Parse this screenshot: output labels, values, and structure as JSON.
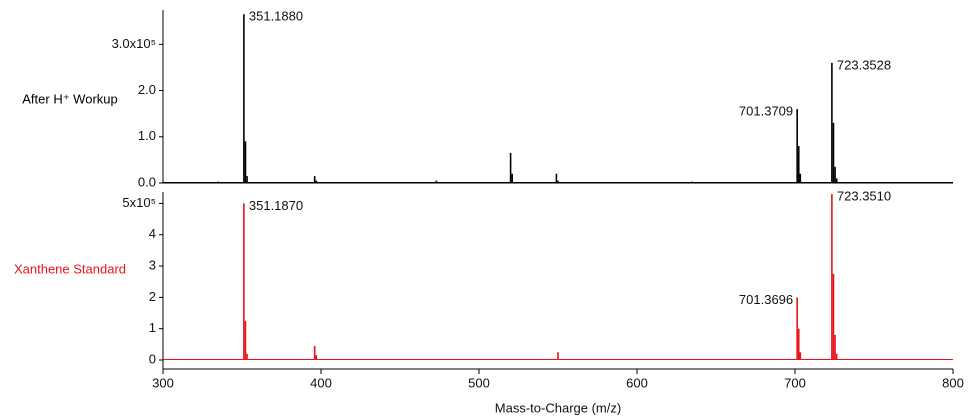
{
  "chart_data": [
    {
      "type": "stem",
      "xlim": [
        300,
        800
      ],
      "ylim": [
        0,
        3.7
      ],
      "yticks": [
        {
          "value": 0,
          "label": "0.0"
        },
        {
          "value": 1,
          "label": "1.0"
        },
        {
          "value": 2,
          "label": "2.0"
        },
        {
          "value": 3,
          "label": "3.0x10⁵"
        }
      ],
      "series": [
        {
          "name": "After H⁺ Workup",
          "color": "#000000",
          "x": [
            335,
            351.188,
            352.19,
            353.19,
            396,
            397,
            473,
            520,
            521,
            549,
            550,
            635,
            701.3709,
            702.37,
            703.37,
            723.3528,
            724.36,
            725.36,
            726.36
          ],
          "values": [
            0.03,
            3.65,
            0.9,
            0.15,
            0.15,
            0.05,
            0.05,
            0.65,
            0.2,
            0.2,
            0.05,
            0.03,
            1.6,
            0.8,
            0.2,
            2.6,
            1.3,
            0.35,
            0.1
          ],
          "x_labels": [
            null,
            "351.1880",
            null,
            null,
            null,
            null,
            null,
            null,
            null,
            null,
            null,
            null,
            "701.3709",
            null,
            null,
            "723.3528",
            null,
            null,
            null
          ]
        }
      ]
    },
    {
      "type": "stem",
      "xlabel": "Mass-to-Charge (m/z)",
      "xlim": [
        300,
        800
      ],
      "xticks": [
        300,
        400,
        500,
        600,
        700,
        800
      ],
      "ylim": [
        0,
        5.3
      ],
      "yticks": [
        0,
        1,
        2,
        3,
        4,
        {
          "value": 5,
          "label": "5x10⁵"
        }
      ],
      "series": [
        {
          "name": "Xanthene Standard",
          "color": "#e8141c",
          "x": [
            351.187,
            352.19,
            353.19,
            396,
            397,
            550,
            701.3696,
            702.37,
            703.37,
            723.351,
            724.35,
            725.35,
            726.36
          ],
          "values": [
            5.0,
            1.25,
            0.2,
            0.45,
            0.15,
            0.25,
            2.0,
            1.0,
            0.25,
            5.3,
            2.75,
            0.8,
            0.2
          ],
          "x_labels": [
            "351.1870",
            null,
            null,
            null,
            null,
            null,
            "701.3696",
            null,
            null,
            "723.3510",
            null,
            null,
            null
          ]
        }
      ]
    }
  ]
}
